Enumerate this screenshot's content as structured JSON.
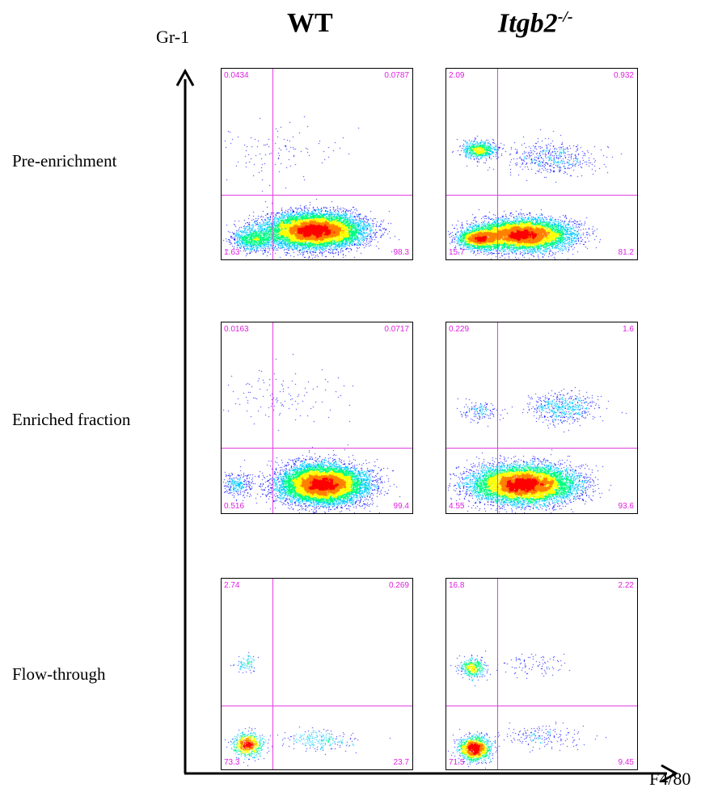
{
  "figure": {
    "col_wt": "WT",
    "col_ko": "Itgb2",
    "col_ko_sup": "-/-",
    "y_axis": "Gr-1",
    "x_axis": "F4/80",
    "row_labels": [
      "Pre-enrichment",
      "Enriched fraction",
      "Flow-through"
    ]
  },
  "chart_data": {
    "type": "scatter",
    "subtype": "flow-cytometry density plots with quadrant gates",
    "xlabel": "F4/80",
    "ylabel": "Gr-1",
    "columns": [
      "WT",
      "Itgb2-/-"
    ],
    "rows": [
      "Pre-enrichment",
      "Enriched fraction",
      "Flow-through"
    ],
    "panels": [
      {
        "row": "Pre-enrichment",
        "column": "WT",
        "quadrants": {
          "upper_left": "0.0434",
          "upper_right": "0.0787",
          "lower_left": "1.63",
          "lower_right": "98.3"
        }
      },
      {
        "row": "Pre-enrichment",
        "column": "Itgb2-/-",
        "quadrants": {
          "upper_left": "2.09",
          "upper_right": "0.932",
          "lower_left": "15.7",
          "lower_right": "81.2"
        }
      },
      {
        "row": "Enriched fraction",
        "column": "WT",
        "quadrants": {
          "upper_left": "0.0163",
          "upper_right": "0.0717",
          "lower_left": "0.516",
          "lower_right": "99.4"
        }
      },
      {
        "row": "Enriched fraction",
        "column": "Itgb2-/-",
        "quadrants": {
          "upper_left": "0.229",
          "upper_right": "1.6",
          "lower_left": "4.55",
          "lower_right": "93.6"
        }
      },
      {
        "row": "Flow-through",
        "column": "WT",
        "quadrants": {
          "upper_left": "2.74",
          "upper_right": "0.269",
          "lower_left": "73.3",
          "lower_right": "23.7"
        }
      },
      {
        "row": "Flow-through",
        "column": "Itgb2-/-",
        "quadrants": {
          "upper_left": "16.8",
          "upper_right": "2.22",
          "lower_left": "71.5",
          "lower_right": "9.45"
        }
      }
    ],
    "quadrant_line_color": "#e040e0",
    "density_colors": [
      "#0000ff",
      "#00c8ff",
      "#00ff80",
      "#ffff00",
      "#ff8000",
      "#ff0000"
    ]
  }
}
